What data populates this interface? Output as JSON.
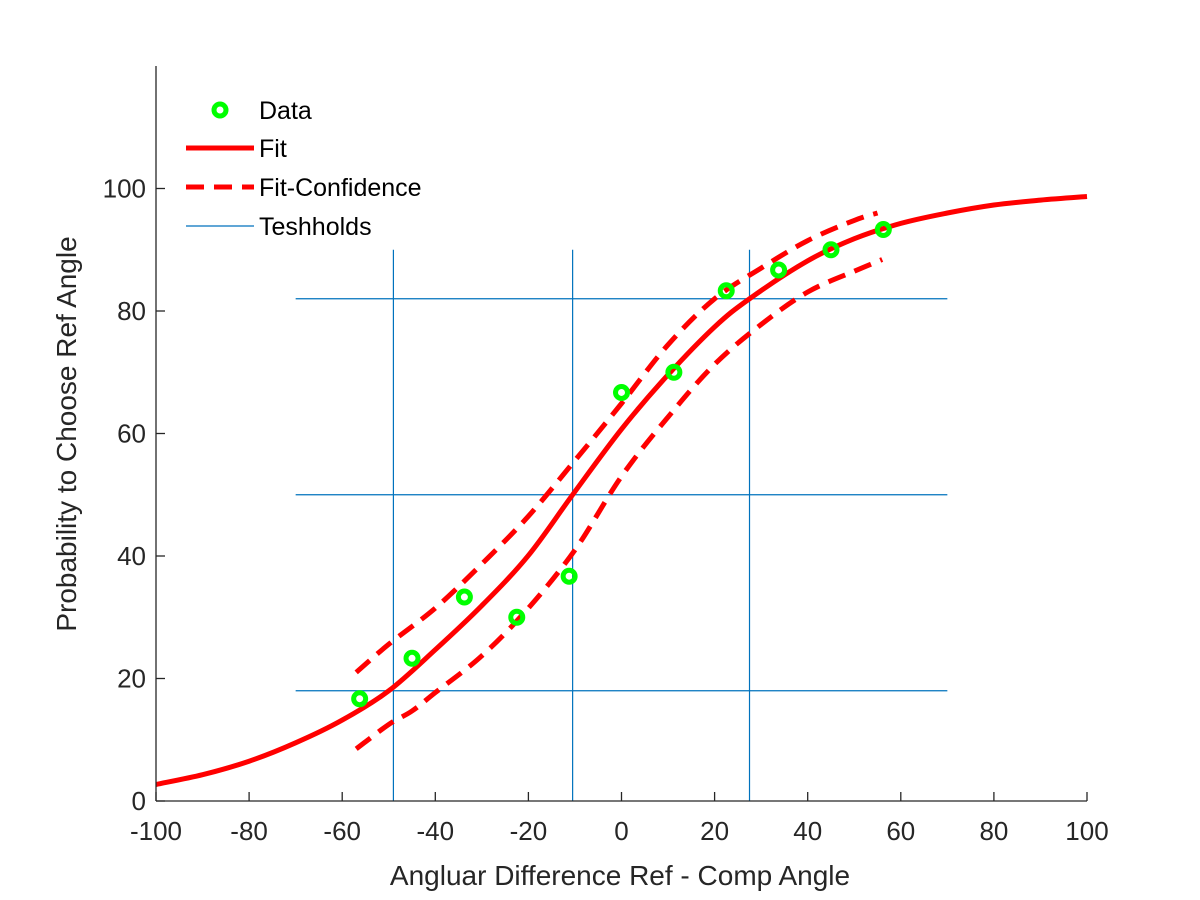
{
  "chart_data": {
    "type": "scatter",
    "xlabel": "Angluar Difference Ref - Comp Angle",
    "ylabel": "Probability to Choose Ref Angle",
    "xlim": [
      -100,
      100
    ],
    "ylim": [
      0,
      120
    ],
    "xticks": [
      -100,
      -80,
      -60,
      -40,
      -20,
      0,
      20,
      40,
      60,
      80,
      100
    ],
    "yticks": [
      0,
      20,
      40,
      60,
      80,
      100
    ],
    "grid": false,
    "legend_position": "top-left",
    "legend": [
      {
        "label": "Data",
        "style": "marker"
      },
      {
        "label": "Fit",
        "style": "solid"
      },
      {
        "label": "Fit-Confidence",
        "style": "dashed"
      },
      {
        "label": "Teshholds",
        "style": "thin"
      }
    ],
    "colors": {
      "data": "#00ff00",
      "fit": "#ff0000",
      "confidence": "#ff0000",
      "thresholds": "#0072bd",
      "axis": "#262626"
    },
    "series": [
      {
        "name": "Data",
        "kind": "scatter",
        "x": [
          -56.25,
          -45,
          -33.75,
          -22.5,
          -11.25,
          0,
          11.25,
          22.5,
          33.75,
          45,
          56.25
        ],
        "y": [
          16.7,
          23.3,
          33.3,
          30.0,
          36.7,
          66.7,
          70.0,
          83.3,
          86.7,
          90.0,
          93.3
        ]
      },
      {
        "name": "Fit",
        "kind": "curve",
        "x": [
          -100,
          -90,
          -80,
          -70,
          -60,
          -50,
          -40,
          -30,
          -20,
          -10.5,
          0,
          10,
          20,
          27.5,
          40,
          50,
          60,
          70,
          80,
          90,
          100
        ],
        "y": [
          2.7,
          4.3,
          6.5,
          9.5,
          13.2,
          18.0,
          24.7,
          31.9,
          40.1,
          50.0,
          60.7,
          69.6,
          77.4,
          82.0,
          88.2,
          91.8,
          94.3,
          96.0,
          97.3,
          98.1,
          98.7
        ]
      },
      {
        "name": "Fit-Confidence",
        "kind": "dashed",
        "part": "upper",
        "x": [
          -57,
          -50,
          -40,
          -30,
          -20,
          -10,
          0,
          10,
          20,
          30,
          40,
          50,
          55
        ],
        "y": [
          21.0,
          25.6,
          31.5,
          38.7,
          46.5,
          55.6,
          64.9,
          74.5,
          82.0,
          87.0,
          91.5,
          94.8,
          96.0
        ]
      },
      {
        "name": "Fit-Confidence",
        "kind": "dashed",
        "part": "lower",
        "x": [
          -57,
          -50,
          -45,
          -40,
          -30,
          -20,
          -10,
          0,
          10,
          20,
          30,
          40,
          50,
          56
        ],
        "y": [
          8.5,
          12.5,
          14.7,
          17.7,
          23.7,
          31.5,
          41.0,
          53.0,
          62.7,
          71.3,
          77.8,
          83.1,
          86.5,
          88.4
        ]
      }
    ],
    "thresholds": {
      "horizontal": {
        "y": [
          18,
          50,
          82
        ],
        "x_range": [
          -70,
          70
        ]
      },
      "vertical": {
        "x": [
          -49,
          -10.5,
          27.5
        ],
        "y_range": [
          0,
          90
        ]
      }
    }
  }
}
